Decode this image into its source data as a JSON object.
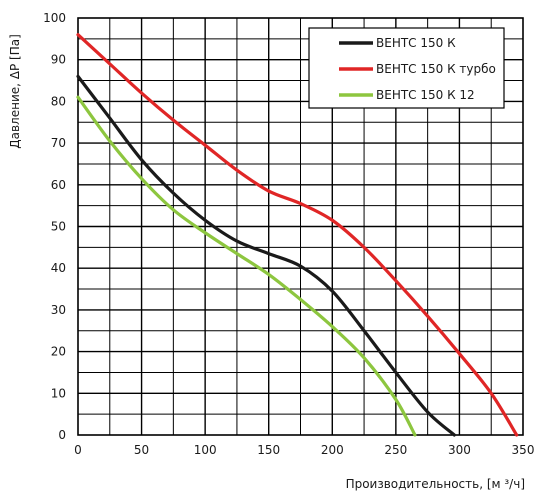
{
  "chart_data": {
    "type": "line",
    "xlabel": "Производительность, [м ³/ч]",
    "ylabel": "Давление, ΔP [Па]",
    "xlim": [
      0,
      350
    ],
    "ylim": [
      0,
      100
    ],
    "x_ticks": [
      0,
      50,
      100,
      150,
      200,
      250,
      300,
      350
    ],
    "y_ticks": [
      0,
      10,
      20,
      30,
      40,
      50,
      60,
      70,
      80,
      90,
      100
    ],
    "x_ticks_text": [
      "0",
      "50",
      "100",
      "150",
      "200",
      "250",
      "300",
      "350"
    ],
    "y_ticks_text": [
      "0",
      "10",
      "20",
      "30",
      "40",
      "50",
      "60",
      "70",
      "80",
      "90",
      "100"
    ],
    "grid": true,
    "legend_position": "top-right",
    "series": [
      {
        "name": "ВЕНТС 150 К",
        "color": "#1a1a1a",
        "points": [
          [
            0,
            86
          ],
          [
            25,
            76
          ],
          [
            50,
            66
          ],
          [
            75,
            58
          ],
          [
            100,
            51.5
          ],
          [
            125,
            46.5
          ],
          [
            150,
            43.5
          ],
          [
            175,
            40.5
          ],
          [
            200,
            34.5
          ],
          [
            225,
            25
          ],
          [
            250,
            15
          ],
          [
            275,
            5.5
          ],
          [
            296,
            0
          ]
        ]
      },
      {
        "name": "ВЕНТС 150 К турбо",
        "color": "#e02626",
        "points": [
          [
            0,
            96
          ],
          [
            25,
            89
          ],
          [
            50,
            82
          ],
          [
            75,
            75.5
          ],
          [
            100,
            69.5
          ],
          [
            125,
            63.5
          ],
          [
            150,
            58.5
          ],
          [
            175,
            55.5
          ],
          [
            200,
            51.5
          ],
          [
            225,
            45
          ],
          [
            250,
            37
          ],
          [
            275,
            28.5
          ],
          [
            300,
            19.5
          ],
          [
            325,
            10
          ],
          [
            345,
            0
          ]
        ]
      },
      {
        "name": "ВЕНТС 150 К 12",
        "color": "#8dc63f",
        "points": [
          [
            0,
            81
          ],
          [
            25,
            70.5
          ],
          [
            50,
            61.5
          ],
          [
            75,
            54
          ],
          [
            100,
            48.5
          ],
          [
            125,
            43.5
          ],
          [
            150,
            38.5
          ],
          [
            175,
            32.5
          ],
          [
            200,
            26
          ],
          [
            225,
            18.5
          ],
          [
            250,
            8.5
          ],
          [
            265,
            0
          ]
        ]
      }
    ]
  }
}
